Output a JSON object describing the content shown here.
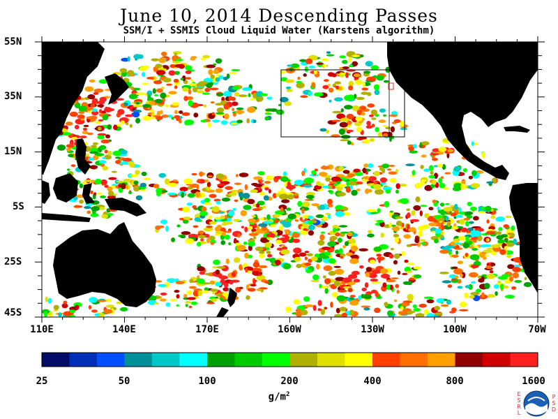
{
  "title": "June 10, 2014  Descending Passes",
  "subtitle": "SSM/I + SSMIS Cloud Liquid Water (Karstens algorithm)",
  "map": {
    "lat_labels": [
      "55N",
      "35N",
      "15N",
      "5S",
      "25S",
      "45S"
    ],
    "lon_labels": [
      "110E",
      "140E",
      "170E",
      "160W",
      "130W",
      "100W",
      "70W"
    ],
    "land_color": "#000000",
    "no_data_color": "#ffffff"
  },
  "colorbar": {
    "labels": [
      "25",
      "50",
      "100",
      "200",
      "400",
      "800",
      "1600"
    ],
    "units": "g/m",
    "units_exp": "2",
    "colors": [
      "#000c66",
      "#0030b8",
      "#0050ff",
      "#00909a",
      "#00c8c8",
      "#00ffff",
      "#00a000",
      "#00cc00",
      "#00ff00",
      "#b0b000",
      "#e0e000",
      "#ffff00",
      "#ff4000",
      "#ff7000",
      "#ffa000",
      "#900000",
      "#d00000",
      "#ff2020"
    ]
  },
  "logo": {
    "name": "noaa-logo",
    "left_letters": "ESRL",
    "right_letters": "PSD",
    "text": "NOAA"
  }
}
